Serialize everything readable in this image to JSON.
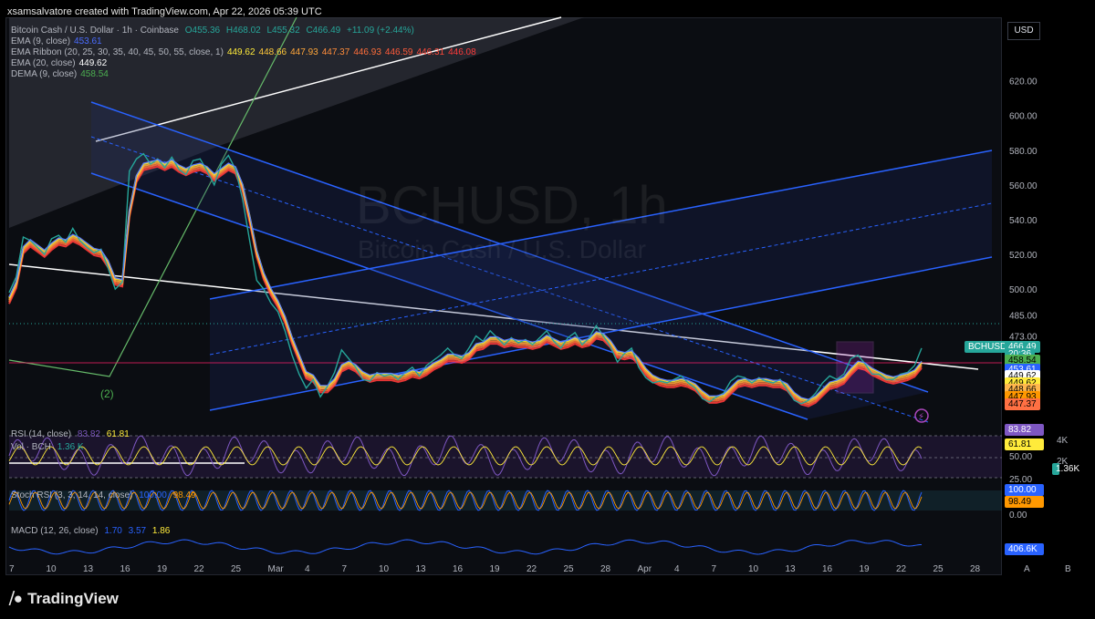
{
  "header": "xsamsalvatore created with TradingView.com, Apr 22, 2026 05:39 UTC",
  "symbol_line": {
    "name": "Bitcoin Cash / U.S. Dollar · 1h · Coinbase",
    "o": "O455.36",
    "h": "H468.02",
    "l": "L455.32",
    "c": "C466.49",
    "chg": "+11.09 (+2.44%)"
  },
  "legend": [
    {
      "label": "EMA (9, close)",
      "values": [
        "453.61"
      ],
      "colors": [
        "#4a6cff"
      ]
    },
    {
      "label": "EMA Ribbon (20, 25, 30, 35, 40, 45, 50, 55, close, 1)",
      "values": [
        "449.62",
        "448.66",
        "447.93",
        "447.37",
        "446.93",
        "446.59",
        "446.31",
        "446.08"
      ],
      "colors": [
        "#ffeb3b",
        "#ffc83a",
        "#ffa63a",
        "#ff8c3a",
        "#ff6e3a",
        "#ff5a3a",
        "#ff4a3a",
        "#ff3a3a"
      ]
    },
    {
      "label": "EMA (20, close)",
      "values": [
        "449.62"
      ],
      "colors": [
        "#ffffff"
      ]
    },
    {
      "label": "DEMA (9, close)",
      "values": [
        "458.54"
      ],
      "colors": [
        "#4caf50"
      ]
    }
  ],
  "watermark": {
    "symbol": "BCHUSD, 1h",
    "name": "Bitcoin Cash / U.S. Dollar"
  },
  "currency_button": "USD",
  "wave_label": "(2)",
  "price_badges": [
    {
      "label": "BCHUSD",
      "value": "466.49",
      "bg": "#26a69a",
      "fg": "#ffffff",
      "price": 466.49
    },
    {
      "label": "",
      "value": "20:36",
      "bg": "#26a69a",
      "fg": "#ffffff",
      "price": 462.3
    },
    {
      "label": "",
      "value": "458.54",
      "bg": "#4caf50",
      "fg": "#000000",
      "price": 458.54
    },
    {
      "label": "",
      "value": "453.61",
      "bg": "#2962ff",
      "fg": "#ffffff",
      "price": 453.61
    },
    {
      "label": "",
      "value": "449.62",
      "bg": "#ffffff",
      "fg": "#000000",
      "price": 449.62
    },
    {
      "label": "",
      "value": "449.62",
      "bg": "#ffeb3b",
      "fg": "#000000",
      "price": 445.6
    },
    {
      "label": "",
      "value": "448.66",
      "bg": "#ffb74d",
      "fg": "#000000",
      "price": 441.6
    },
    {
      "label": "",
      "value": "447.93",
      "bg": "#ff9800",
      "fg": "#000000",
      "price": 437.6
    },
    {
      "label": "",
      "value": "447.37",
      "bg": "#ff7043",
      "fg": "#000000",
      "price": 433.6
    }
  ],
  "indicators": {
    "rsi": {
      "label": "RSI (14, close)",
      "values": [
        "83.82",
        "61.81"
      ],
      "badge1": "83.82",
      "badge2": "61.81",
      "levels": [
        "50.00",
        "25.00"
      ]
    },
    "vol": {
      "label": "Vol · BCH",
      "value": "1.36 K",
      "badge": "1.36K",
      "axis": [
        "4K",
        "2K"
      ]
    },
    "stoch": {
      "label": "Stoch RSI (3, 3, 14, 14, close)",
      "values": [
        "100.00",
        "98.49"
      ],
      "badge1": "100.00",
      "badge2": "98.49",
      "axis": [
        "0.00"
      ]
    },
    "macd": {
      "label": "MACD (12, 26, close)",
      "values": [
        "1.70",
        "3.57",
        "1.86"
      ],
      "badge": "406.6K"
    }
  },
  "right_controls": [
    "A",
    "B"
  ],
  "brand": "TradingView",
  "chart_data": {
    "type": "line",
    "title": "BCHUSD, 1h",
    "ylabel": "",
    "y_ticks": [
      485,
      500,
      520,
      540,
      560,
      580,
      600,
      620
    ],
    "y_ticks_labels": [
      "485.00",
      "500.00",
      "520.00",
      "540.00",
      "560.00",
      "580.00",
      "600.00",
      "620.00"
    ],
    "extra_tick": "473.00",
    "ylim": [
      425,
      635
    ],
    "x_ticks": [
      "7",
      "10",
      "13",
      "16",
      "19",
      "22",
      "25",
      "Mar",
      "4",
      "7",
      "10",
      "13",
      "16",
      "19",
      "22",
      "25",
      "28",
      "Apr",
      "4",
      "7",
      "10",
      "13",
      "16",
      "19",
      "22",
      "25",
      "28"
    ],
    "series": [
      {
        "values": [
          498,
          507,
          530,
          528,
          524,
          520,
          529,
          531,
          527,
          535,
          528,
          524,
          521,
          523,
          512,
          500,
          504,
          568,
          575,
          578,
          572,
          575,
          570,
          576,
          569,
          566,
          574,
          575,
          568,
          560,
          572,
          577,
          569,
          552,
          528,
          505,
          500,
          492,
          487,
          476,
          462,
          451,
          443,
          448,
          438,
          444,
          452,
          465,
          460,
          455,
          448,
          447,
          452,
          450,
          451,
          448,
          452,
          455,
          450,
          456,
          459,
          462,
          466,
          462,
          460,
          466,
          473,
          470,
          476,
          472,
          468,
          472,
          469,
          471,
          468,
          472,
          476,
          470,
          466,
          472,
          475,
          468,
          472,
          479,
          473,
          467,
          458,
          463,
          466,
          455,
          449,
          446,
          447,
          446,
          448,
          450,
          446,
          443,
          437,
          435,
          438,
          440,
          447,
          450,
          449,
          446,
          449,
          447,
          446,
          448,
          442,
          436,
          434,
          436,
          440,
          446,
          450,
          448,
          451,
          460,
          462,
          457,
          451,
          451,
          448,
          448,
          451,
          452,
          456,
          466
        ]
      },
      {
        "values": [
          495,
          504,
          524,
          528,
          525,
          522,
          526,
          529,
          528,
          531,
          529,
          526,
          523,
          522,
          516,
          506,
          505,
          545,
          565,
          572,
          573,
          574,
          572,
          574,
          571,
          569,
          571,
          572,
          570,
          566,
          569,
          572,
          570,
          560,
          542,
          522,
          509,
          500,
          493,
          484,
          472,
          462,
          452,
          450,
          444,
          444,
          448,
          456,
          458,
          456,
          452,
          450,
          451,
          451,
          451,
          450,
          451,
          453,
          452,
          454,
          457,
          459,
          462,
          462,
          461,
          463,
          468,
          469,
          472,
          472,
          470,
          471,
          470,
          470,
          469,
          470,
          473,
          471,
          469,
          470,
          472,
          470,
          471,
          475,
          474,
          470,
          464,
          463,
          464,
          460,
          454,
          450,
          448,
          447,
          447,
          448,
          447,
          445,
          441,
          438,
          438,
          439,
          443,
          447,
          448,
          447,
          448,
          448,
          447,
          447,
          445,
          440,
          437,
          436,
          438,
          442,
          446,
          447,
          449,
          454,
          458,
          457,
          454,
          452,
          450,
          449,
          450,
          451,
          453,
          458
        ]
      }
    ]
  }
}
